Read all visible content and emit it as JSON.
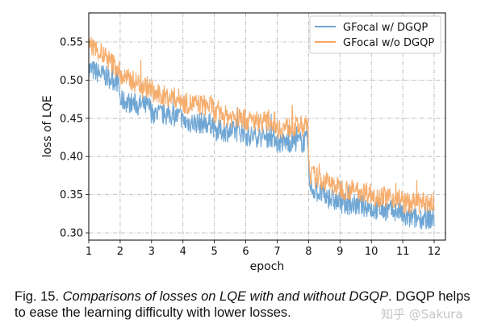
{
  "chart_data": {
    "type": "line",
    "xlabel": "epoch",
    "ylabel": "loss of LQE",
    "xlim": [
      1,
      12
    ],
    "ylim": [
      0.29,
      0.58
    ],
    "xticks": [
      1,
      2,
      3,
      4,
      5,
      6,
      7,
      8,
      9,
      10,
      11,
      12
    ],
    "yticks": [
      "0.30",
      "0.35",
      "0.40",
      "0.45",
      "0.50",
      "0.55"
    ],
    "grid": true,
    "legend_position": "top-right",
    "series": [
      {
        "name": "GFocal w/ DGQP",
        "color": "#6fa6d4",
        "x": [
          1,
          1.95,
          2,
          2.95,
          3,
          3.95,
          4,
          4.95,
          5,
          5.95,
          6,
          6.95,
          7,
          7.97,
          8.03,
          8.5,
          9,
          9.95,
          10,
          10.95,
          11,
          12
        ],
        "y": [
          0.515,
          0.497,
          0.473,
          0.465,
          0.457,
          0.452,
          0.445,
          0.443,
          0.434,
          0.432,
          0.427,
          0.425,
          0.418,
          0.42,
          0.36,
          0.348,
          0.339,
          0.334,
          0.331,
          0.328,
          0.319,
          0.319
        ]
      },
      {
        "name": "GFocal w/o DGQP",
        "color": "#f5a55e",
        "x": [
          1,
          1.95,
          2,
          2.95,
          3,
          3.95,
          4,
          4.95,
          5,
          5.95,
          6,
          6.95,
          7,
          7.97,
          8.03,
          8.5,
          9,
          9.95,
          10,
          10.95,
          11,
          12
        ],
        "y": [
          0.548,
          0.515,
          0.505,
          0.49,
          0.482,
          0.475,
          0.47,
          0.466,
          0.455,
          0.45,
          0.447,
          0.445,
          0.437,
          0.44,
          0.377,
          0.368,
          0.358,
          0.353,
          0.349,
          0.345,
          0.339,
          0.339
        ]
      }
    ]
  },
  "caption": {
    "label": "Fig. 15.",
    "italic": "Comparisons of losses on LQE with and without DGQP",
    "rest": ". DGQP helps to ease the learning difficulty with lower losses."
  },
  "watermark": "知乎 @Sakura"
}
